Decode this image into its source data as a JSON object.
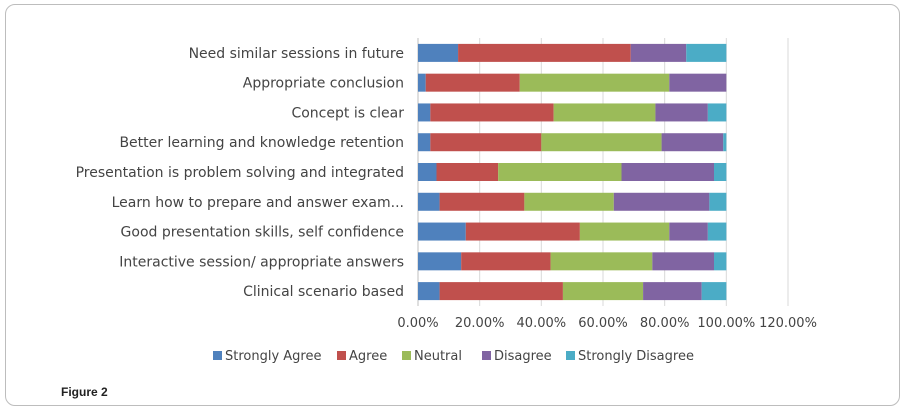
{
  "figure_label": "Figure 2",
  "chart_data": {
    "type": "bar",
    "orientation": "horizontal",
    "stacked": true,
    "categories": [
      "Need similar sessions in future",
      "Appropriate conclusion",
      "Concept is clear",
      "Better learning and knowledge retention",
      "Presentation is problem solving and integrated",
      "Learn how to  prepare and answer exam...",
      "Good presentation skills, self confidence",
      "Interactive session/ appropriate answers",
      "Clinical scenario based"
    ],
    "series": [
      {
        "name": "Strongly Agree",
        "color": "#4F81BD",
        "values": [
          13,
          2.5,
          4,
          4,
          6,
          7,
          15.5,
          14,
          7
        ]
      },
      {
        "name": "Agree",
        "color": "#C0504D",
        "values": [
          56,
          30.5,
          40,
          36,
          20,
          27.5,
          37,
          29,
          40
        ]
      },
      {
        "name": "Neutral",
        "color": "#9BBB59",
        "values": [
          0,
          48.5,
          33,
          39,
          40,
          29,
          29,
          33,
          26
        ]
      },
      {
        "name": "Disagree",
        "color": "#8064A2",
        "values": [
          18,
          18.5,
          17,
          20,
          30,
          31,
          12.5,
          20,
          19
        ]
      },
      {
        "name": "Strongly Disagree",
        "color": "#4BACC6",
        "values": [
          13,
          0,
          6,
          1,
          4,
          5.5,
          6,
          4,
          8
        ]
      }
    ],
    "xlim": [
      0,
      120
    ],
    "xticks": [
      0,
      20,
      40,
      60,
      80,
      100,
      120
    ],
    "xtick_labels": [
      "0.00%",
      "20.00%",
      "40.00%",
      "60.00%",
      "80.00%",
      "100.00%",
      "120.00%"
    ],
    "legend_position": "bottom",
    "grid": "vertical major gridlines",
    "title": "",
    "xlabel": "",
    "ylabel": ""
  }
}
